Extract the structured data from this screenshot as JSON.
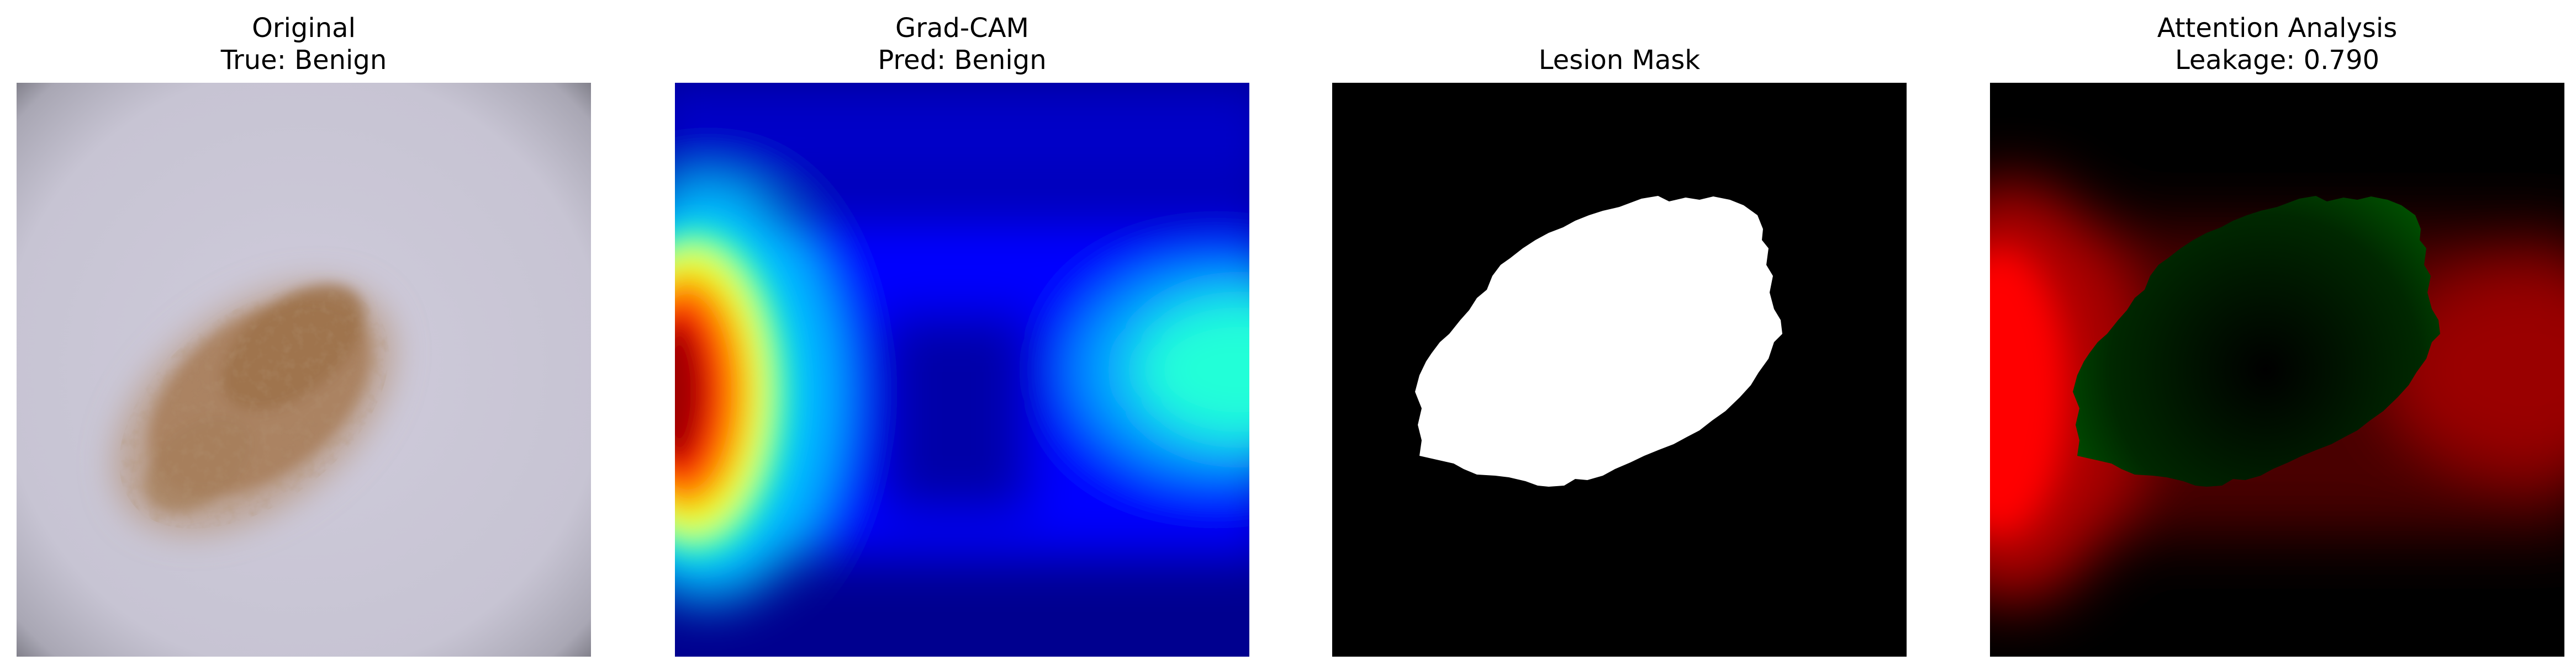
{
  "panels": [
    {
      "title_line1": "Original",
      "title_line2": "True: Benign"
    },
    {
      "title_line1": "Grad-CAM",
      "title_line2": "Pred: Benign"
    },
    {
      "title_line1": "Lesion Mask",
      "title_line2": ""
    },
    {
      "title_line1": "Attention Analysis",
      "title_line2": "Leakage: 0.790"
    }
  ],
  "colors": {
    "skin": "#c9c6d6",
    "lesion": "#a47a55",
    "gradcam_low": "#00008f",
    "gradcam_high": "#8f0000",
    "mask_bg": "#000000",
    "mask_fg": "#ffffff",
    "attention_outside": "#ff0000",
    "attention_inside": "#00a000"
  }
}
